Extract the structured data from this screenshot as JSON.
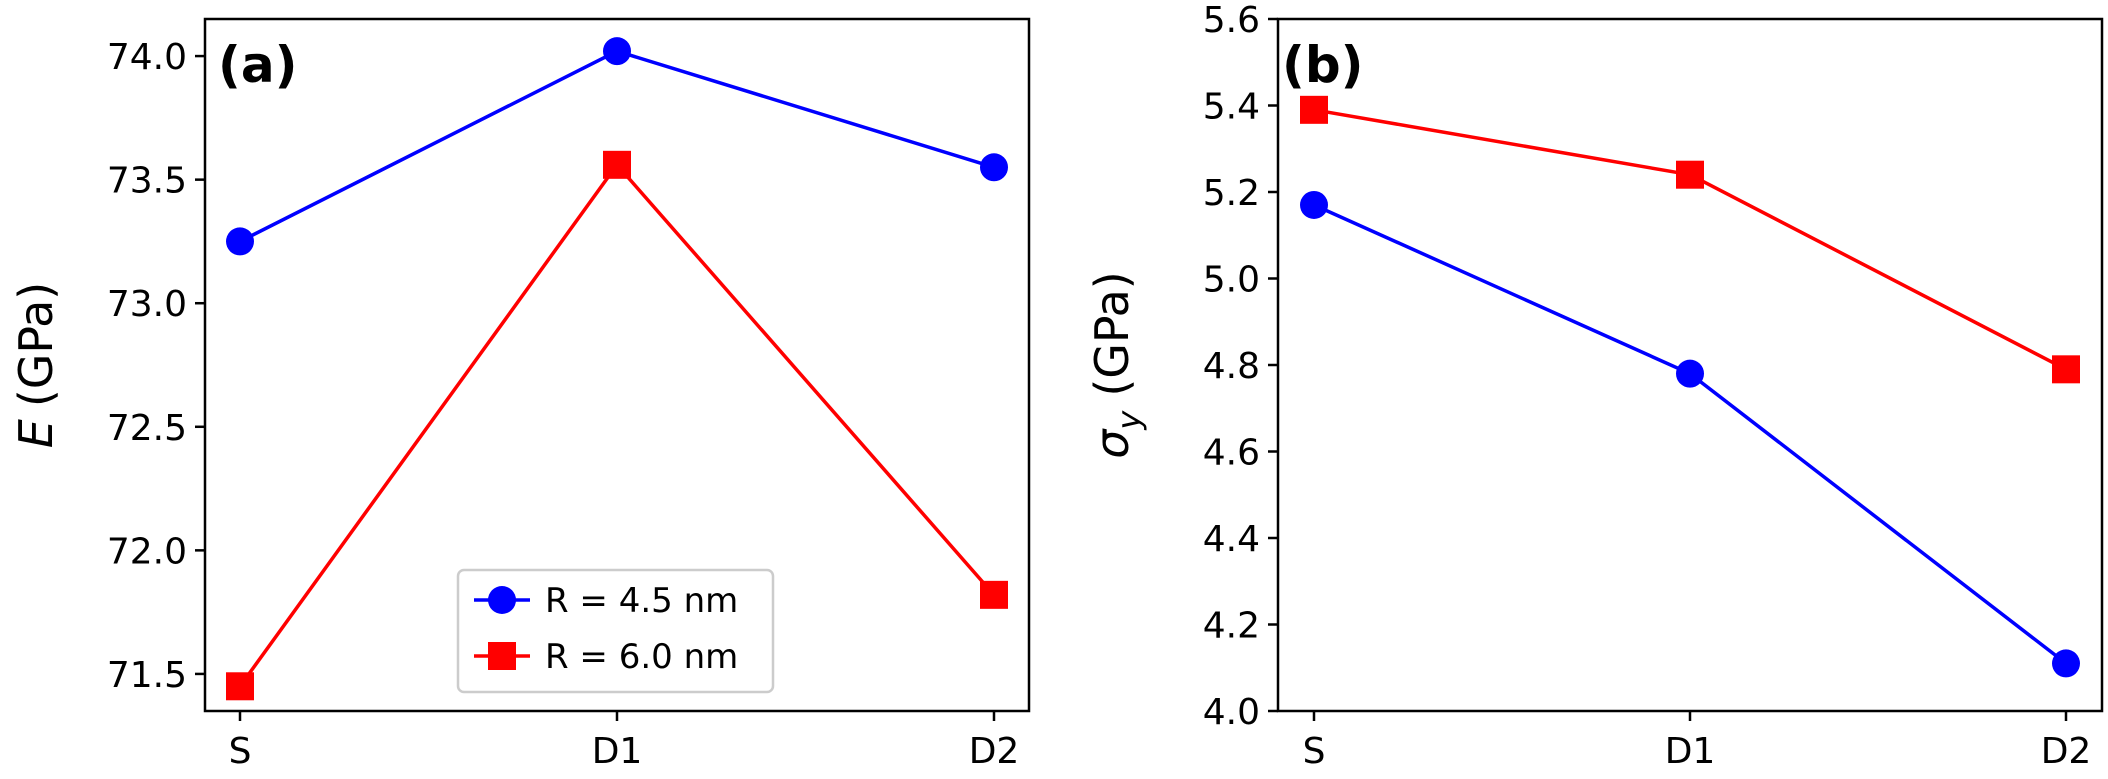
{
  "chart_data": [
    {
      "type": "line",
      "panel_label": "(a)",
      "categories": [
        "S",
        "D1",
        "D2"
      ],
      "ylabel_symbol": "E",
      "ylabel_unit": "(GPa)",
      "ylim": [
        71.35,
        74.15
      ],
      "yticks": [
        "71.5",
        "72.0",
        "72.5",
        "73.0",
        "73.5",
        "74.0"
      ],
      "legend_position": "lower-center",
      "series": [
        {
          "name": "R = 4.5 nm",
          "marker": "circle",
          "color": "#0000ff",
          "values": [
            73.25,
            74.02,
            73.55
          ]
        },
        {
          "name": "R = 6.0 nm",
          "marker": "square",
          "color": "#ff0000",
          "values": [
            71.45,
            73.56,
            71.82
          ]
        }
      ]
    },
    {
      "type": "line",
      "panel_label": "(b)",
      "categories": [
        "S",
        "D1",
        "D2"
      ],
      "ylabel_symbol": "σ",
      "ylabel_subscript": "y",
      "ylabel_unit": "(GPa)",
      "ylim": [
        4.0,
        5.6
      ],
      "yticks": [
        "4.0",
        "4.2",
        "4.4",
        "4.6",
        "4.8",
        "5.0",
        "5.2",
        "5.4",
        "5.6"
      ],
      "series": [
        {
          "name": "R = 4.5 nm",
          "marker": "circle",
          "color": "#0000ff",
          "values": [
            5.17,
            4.78,
            4.11
          ]
        },
        {
          "name": "R = 6.0 nm",
          "marker": "square",
          "color": "#ff0000",
          "values": [
            5.39,
            5.24,
            4.79
          ]
        }
      ]
    }
  ]
}
